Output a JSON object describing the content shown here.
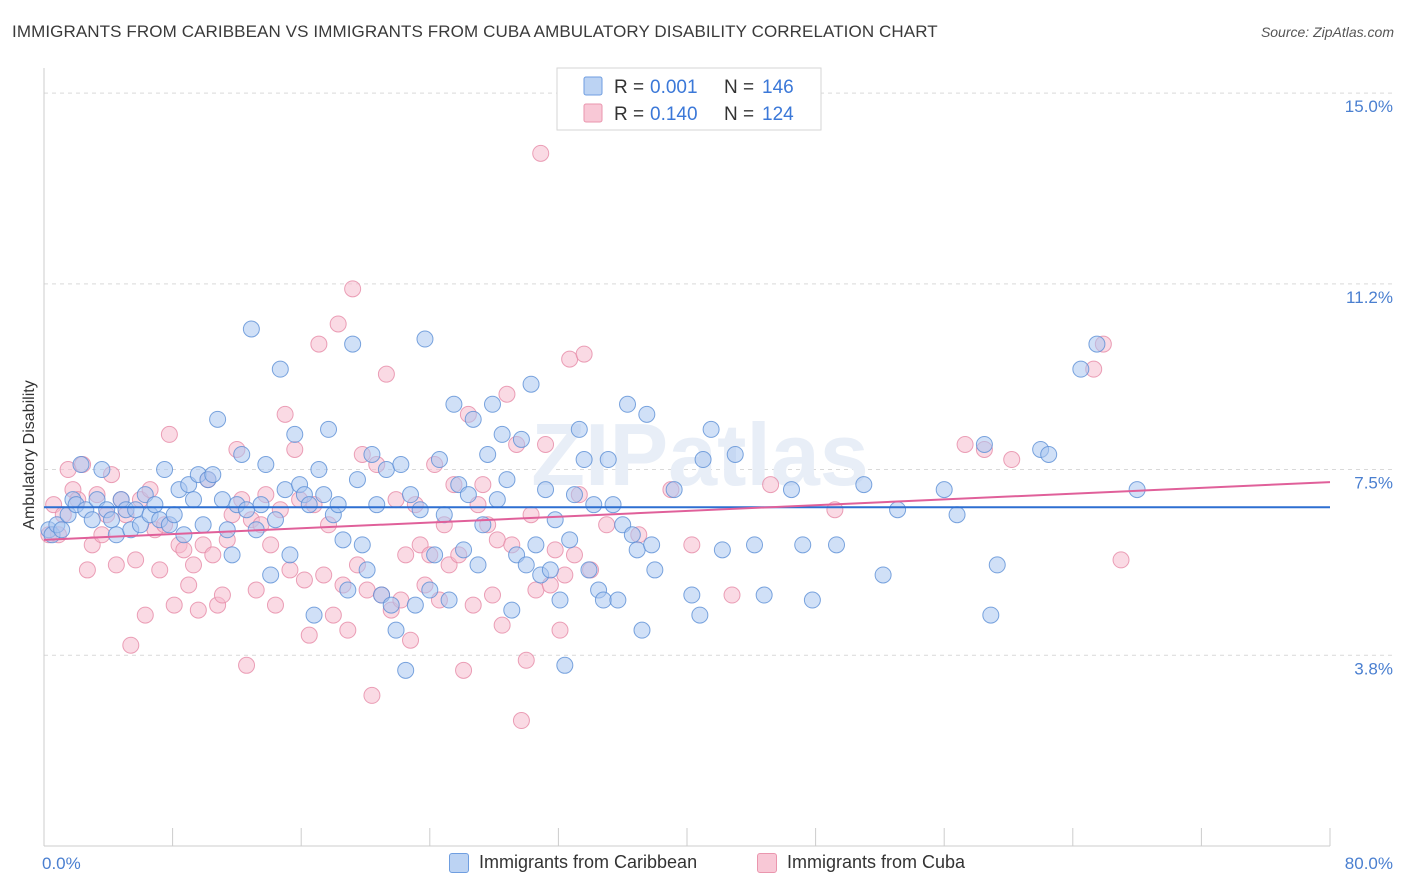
{
  "title": "IMMIGRANTS FROM CARIBBEAN VS IMMIGRANTS FROM CUBA AMBULATORY DISABILITY CORRELATION CHART",
  "source": "Source: ZipAtlas.com",
  "watermark": "ZIPatlas",
  "colors": {
    "caribbean_fill": "#a9c6f0",
    "caribbean_stroke": "#5b8fd6",
    "caribbean_line": "#2d6fd1",
    "cuba_fill": "#f6bccd",
    "cuba_stroke": "#e68aa6",
    "cuba_line": "#e0609a",
    "tick_text": "#4a7fd0",
    "grid": "#d9d9d9"
  },
  "legend_top": {
    "rows": [
      {
        "r_label": "R =",
        "r_value": "0.001",
        "n_label": "N =",
        "n_value": "146"
      },
      {
        "r_label": "R =",
        "r_value": "0.140",
        "n_label": "N =",
        "n_value": "124"
      }
    ]
  },
  "legend_bottom": {
    "items": [
      "Immigrants from Caribbean",
      "Immigrants from Cuba"
    ]
  },
  "chart_data": {
    "type": "scatter",
    "title": "IMMIGRANTS FROM CARIBBEAN VS IMMIGRANTS FROM CUBA AMBULATORY DISABILITY CORRELATION CHART",
    "xlabel": "",
    "ylabel": "Ambulatory Disability",
    "xlim": [
      0,
      80
    ],
    "ylim": [
      0,
      15.5
    ],
    "x_tick_labels": [
      "0.0%",
      "80.0%"
    ],
    "y_ticks": [
      3.8,
      7.5,
      11.2,
      15.0
    ],
    "y_tick_labels": [
      "3.8%",
      "7.5%",
      "11.2%",
      "15.0%"
    ],
    "grid": true,
    "legend_position": "top-center",
    "series": [
      {
        "name": "Immigrants from Caribbean",
        "R": 0.001,
        "N": 146,
        "trend": {
          "x": [
            0,
            80
          ],
          "y": [
            6.75,
            6.75
          ]
        },
        "points": [
          [
            0.3,
            6.3
          ],
          [
            0.5,
            6.2
          ],
          [
            0.8,
            6.4
          ],
          [
            1.1,
            6.3
          ],
          [
            1.5,
            6.6
          ],
          [
            1.8,
            6.9
          ],
          [
            2.0,
            6.8
          ],
          [
            2.3,
            7.6
          ],
          [
            2.6,
            6.7
          ],
          [
            3.0,
            6.5
          ],
          [
            3.3,
            6.9
          ],
          [
            3.6,
            7.5
          ],
          [
            3.9,
            6.7
          ],
          [
            4.2,
            6.5
          ],
          [
            4.5,
            6.2
          ],
          [
            4.8,
            6.9
          ],
          [
            5.1,
            6.7
          ],
          [
            5.4,
            6.3
          ],
          [
            5.7,
            6.7
          ],
          [
            6.0,
            6.4
          ],
          [
            6.3,
            7.0
          ],
          [
            6.6,
            6.6
          ],
          [
            6.9,
            6.8
          ],
          [
            7.2,
            6.5
          ],
          [
            7.5,
            7.5
          ],
          [
            7.8,
            6.4
          ],
          [
            8.1,
            6.6
          ],
          [
            8.4,
            7.1
          ],
          [
            8.7,
            6.2
          ],
          [
            9.0,
            7.2
          ],
          [
            9.3,
            6.9
          ],
          [
            9.6,
            7.4
          ],
          [
            9.9,
            6.4
          ],
          [
            10.2,
            7.3
          ],
          [
            10.5,
            7.4
          ],
          [
            10.8,
            8.5
          ],
          [
            11.1,
            6.9
          ],
          [
            11.4,
            6.3
          ],
          [
            11.7,
            5.8
          ],
          [
            12.0,
            6.8
          ],
          [
            12.3,
            7.8
          ],
          [
            12.6,
            6.7
          ],
          [
            12.9,
            10.3
          ],
          [
            13.2,
            6.3
          ],
          [
            13.5,
            6.8
          ],
          [
            13.8,
            7.6
          ],
          [
            14.1,
            5.4
          ],
          [
            14.4,
            6.5
          ],
          [
            14.7,
            9.5
          ],
          [
            15.0,
            7.1
          ],
          [
            15.3,
            5.8
          ],
          [
            15.6,
            8.2
          ],
          [
            15.9,
            7.2
          ],
          [
            16.2,
            7.0
          ],
          [
            16.5,
            6.8
          ],
          [
            16.8,
            4.6
          ],
          [
            17.1,
            7.5
          ],
          [
            17.4,
            7.0
          ],
          [
            17.7,
            8.3
          ],
          [
            18.0,
            6.6
          ],
          [
            18.3,
            6.8
          ],
          [
            18.6,
            6.1
          ],
          [
            18.9,
            5.1
          ],
          [
            19.2,
            10.0
          ],
          [
            19.5,
            7.3
          ],
          [
            19.8,
            6.0
          ],
          [
            20.1,
            5.5
          ],
          [
            20.4,
            7.8
          ],
          [
            20.7,
            6.8
          ],
          [
            21.0,
            5.0
          ],
          [
            21.3,
            7.5
          ],
          [
            21.6,
            4.8
          ],
          [
            21.9,
            4.3
          ],
          [
            22.2,
            7.6
          ],
          [
            22.5,
            3.5
          ],
          [
            22.8,
            7.0
          ],
          [
            23.1,
            4.8
          ],
          [
            23.4,
            6.7
          ],
          [
            23.7,
            10.1
          ],
          [
            24.0,
            5.1
          ],
          [
            24.3,
            5.8
          ],
          [
            24.6,
            7.7
          ],
          [
            24.9,
            6.6
          ],
          [
            25.2,
            4.9
          ],
          [
            25.5,
            8.8
          ],
          [
            25.8,
            7.2
          ],
          [
            26.1,
            5.9
          ],
          [
            26.4,
            7.0
          ],
          [
            26.7,
            8.5
          ],
          [
            27.0,
            5.6
          ],
          [
            27.3,
            6.4
          ],
          [
            27.6,
            7.8
          ],
          [
            27.9,
            8.8
          ],
          [
            28.2,
            6.9
          ],
          [
            28.5,
            8.2
          ],
          [
            28.8,
            7.3
          ],
          [
            29.1,
            4.7
          ],
          [
            29.4,
            5.8
          ],
          [
            29.7,
            8.1
          ],
          [
            30.0,
            5.6
          ],
          [
            30.3,
            9.2
          ],
          [
            30.6,
            6.0
          ],
          [
            30.9,
            5.4
          ],
          [
            31.2,
            7.1
          ],
          [
            31.5,
            5.5
          ],
          [
            31.8,
            6.5
          ],
          [
            32.1,
            4.9
          ],
          [
            32.4,
            3.6
          ],
          [
            32.7,
            6.1
          ],
          [
            33.0,
            7.0
          ],
          [
            33.3,
            8.3
          ],
          [
            33.6,
            7.7
          ],
          [
            33.9,
            5.5
          ],
          [
            34.2,
            6.8
          ],
          [
            34.5,
            5.1
          ],
          [
            34.8,
            4.9
          ],
          [
            35.1,
            7.7
          ],
          [
            35.4,
            6.8
          ],
          [
            35.7,
            4.9
          ],
          [
            36.0,
            6.4
          ],
          [
            36.3,
            8.8
          ],
          [
            36.6,
            6.2
          ],
          [
            36.9,
            5.9
          ],
          [
            37.2,
            4.3
          ],
          [
            37.5,
            8.6
          ],
          [
            37.8,
            6.0
          ],
          [
            38.0,
            5.5
          ],
          [
            39.2,
            7.1
          ],
          [
            40.3,
            5.0
          ],
          [
            40.8,
            4.6
          ],
          [
            41.0,
            7.7
          ],
          [
            41.5,
            8.3
          ],
          [
            42.2,
            5.9
          ],
          [
            43.0,
            7.8
          ],
          [
            44.2,
            6.0
          ],
          [
            44.8,
            5.0
          ],
          [
            46.5,
            7.1
          ],
          [
            47.2,
            6.0
          ],
          [
            47.8,
            4.9
          ],
          [
            49.3,
            6.0
          ],
          [
            51.0,
            7.2
          ],
          [
            52.2,
            5.4
          ],
          [
            53.1,
            6.7
          ],
          [
            56.0,
            7.1
          ],
          [
            56.8,
            6.6
          ],
          [
            58.5,
            8.0
          ],
          [
            58.9,
            4.6
          ],
          [
            59.3,
            5.6
          ],
          [
            62.0,
            7.9
          ],
          [
            62.5,
            7.8
          ],
          [
            64.5,
            9.5
          ],
          [
            65.5,
            10.0
          ],
          [
            68.0,
            7.1
          ]
        ]
      },
      {
        "name": "Immigrants from Cuba",
        "R": 0.14,
        "N": 124,
        "trend": {
          "x": [
            0,
            80
          ],
          "y": [
            6.1,
            7.25
          ]
        },
        "points": [
          [
            0.3,
            6.2
          ],
          [
            0.6,
            6.8
          ],
          [
            0.9,
            6.2
          ],
          [
            1.2,
            6.6
          ],
          [
            1.5,
            7.5
          ],
          [
            1.8,
            7.1
          ],
          [
            2.1,
            6.9
          ],
          [
            2.4,
            7.6
          ],
          [
            2.7,
            5.5
          ],
          [
            3.0,
            6.0
          ],
          [
            3.3,
            7.0
          ],
          [
            3.6,
            6.2
          ],
          [
            3.9,
            6.6
          ],
          [
            4.2,
            7.4
          ],
          [
            4.5,
            5.6
          ],
          [
            4.8,
            6.9
          ],
          [
            5.1,
            6.6
          ],
          [
            5.4,
            4.0
          ],
          [
            5.7,
            5.7
          ],
          [
            6.0,
            6.9
          ],
          [
            6.3,
            4.6
          ],
          [
            6.6,
            7.1
          ],
          [
            6.9,
            6.3
          ],
          [
            7.2,
            5.5
          ],
          [
            7.5,
            6.4
          ],
          [
            7.8,
            8.2
          ],
          [
            8.1,
            4.8
          ],
          [
            8.4,
            6.0
          ],
          [
            8.7,
            5.9
          ],
          [
            9.0,
            5.2
          ],
          [
            9.3,
            5.6
          ],
          [
            9.6,
            4.7
          ],
          [
            9.9,
            6.0
          ],
          [
            10.2,
            7.3
          ],
          [
            10.5,
            5.8
          ],
          [
            10.8,
            4.8
          ],
          [
            11.1,
            5.0
          ],
          [
            11.4,
            6.1
          ],
          [
            11.7,
            6.6
          ],
          [
            12.0,
            7.9
          ],
          [
            12.3,
            6.9
          ],
          [
            12.6,
            3.6
          ],
          [
            12.9,
            6.5
          ],
          [
            13.2,
            5.1
          ],
          [
            13.5,
            6.4
          ],
          [
            13.8,
            7.0
          ],
          [
            14.1,
            6.0
          ],
          [
            14.4,
            4.8
          ],
          [
            14.7,
            6.7
          ],
          [
            15.0,
            8.6
          ],
          [
            15.3,
            5.5
          ],
          [
            15.6,
            7.9
          ],
          [
            15.9,
            6.9
          ],
          [
            16.2,
            5.3
          ],
          [
            16.5,
            4.2
          ],
          [
            16.8,
            6.8
          ],
          [
            17.1,
            10.0
          ],
          [
            17.4,
            5.4
          ],
          [
            17.7,
            6.4
          ],
          [
            18.0,
            4.6
          ],
          [
            18.3,
            10.4
          ],
          [
            18.6,
            5.2
          ],
          [
            18.9,
            4.3
          ],
          [
            19.2,
            11.1
          ],
          [
            19.5,
            5.6
          ],
          [
            19.8,
            7.8
          ],
          [
            20.1,
            5.1
          ],
          [
            20.4,
            3.0
          ],
          [
            20.7,
            7.6
          ],
          [
            21.0,
            5.0
          ],
          [
            21.3,
            9.4
          ],
          [
            21.6,
            4.7
          ],
          [
            21.9,
            6.9
          ],
          [
            22.2,
            4.9
          ],
          [
            22.5,
            5.8
          ],
          [
            22.8,
            4.1
          ],
          [
            23.1,
            6.8
          ],
          [
            23.4,
            6.0
          ],
          [
            23.7,
            5.2
          ],
          [
            24.0,
            5.8
          ],
          [
            24.3,
            7.6
          ],
          [
            24.6,
            4.9
          ],
          [
            24.9,
            6.4
          ],
          [
            25.2,
            5.6
          ],
          [
            25.5,
            7.2
          ],
          [
            25.8,
            5.8
          ],
          [
            26.1,
            3.5
          ],
          [
            26.4,
            8.6
          ],
          [
            26.7,
            4.8
          ],
          [
            27.0,
            6.8
          ],
          [
            27.3,
            7.2
          ],
          [
            27.6,
            6.4
          ],
          [
            27.9,
            5.0
          ],
          [
            28.2,
            6.1
          ],
          [
            28.5,
            4.4
          ],
          [
            28.8,
            9.0
          ],
          [
            29.1,
            6.0
          ],
          [
            29.4,
            8.0
          ],
          [
            29.7,
            2.5
          ],
          [
            30.0,
            3.7
          ],
          [
            30.3,
            6.6
          ],
          [
            30.6,
            5.1
          ],
          [
            30.9,
            13.8
          ],
          [
            31.2,
            8.0
          ],
          [
            31.5,
            5.2
          ],
          [
            31.8,
            5.9
          ],
          [
            32.1,
            4.3
          ],
          [
            32.4,
            5.4
          ],
          [
            32.7,
            9.7
          ],
          [
            33.0,
            5.8
          ],
          [
            33.3,
            7.0
          ],
          [
            33.6,
            9.8
          ],
          [
            34.0,
            5.5
          ],
          [
            35.0,
            6.4
          ],
          [
            37.0,
            6.2
          ],
          [
            39.0,
            7.1
          ],
          [
            40.3,
            6.0
          ],
          [
            42.8,
            5.0
          ],
          [
            45.2,
            7.2
          ],
          [
            49.2,
            6.7
          ],
          [
            57.3,
            8.0
          ],
          [
            58.5,
            7.9
          ],
          [
            60.2,
            7.7
          ],
          [
            65.3,
            9.5
          ],
          [
            65.9,
            10.0
          ],
          [
            67.0,
            5.7
          ]
        ]
      }
    ]
  }
}
